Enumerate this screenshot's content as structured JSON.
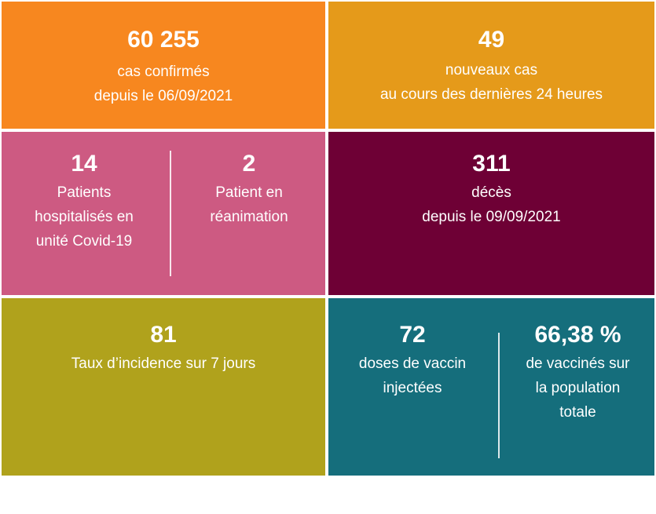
{
  "colors": {
    "orange": "#f7871f",
    "amber": "#e59a1a",
    "pink": "#cd5a82",
    "wine": "#6e0035",
    "olive": "#b0a21c",
    "teal": "#156e7c"
  },
  "tiles": {
    "confirmed": {
      "value": "60 255",
      "line1": "cas confirmés",
      "line2": "depuis le 06/09/2021"
    },
    "new_cases": {
      "value": "49",
      "line1": "nouveaux cas",
      "line2": "au cours des dernières 24 heures"
    },
    "hospitalized": {
      "value": "14",
      "line1": "Patients",
      "line2": "hospitalisés en",
      "line3": "unité Covid-19"
    },
    "icu": {
      "value": "2",
      "line1": "Patient en",
      "line2": "réanimation"
    },
    "deaths": {
      "value": "311",
      "line1": "décès",
      "line2": "depuis le 09/09/2021"
    },
    "incidence": {
      "value": "81",
      "line1": "Taux d’incidence sur 7 jours"
    },
    "doses": {
      "value": "72",
      "line1": "doses de vaccin",
      "line2": "injectées"
    },
    "vaccinated": {
      "value": "66,38 %",
      "line1": "de vaccinés sur",
      "line2": "la population",
      "line3": "totale"
    }
  }
}
